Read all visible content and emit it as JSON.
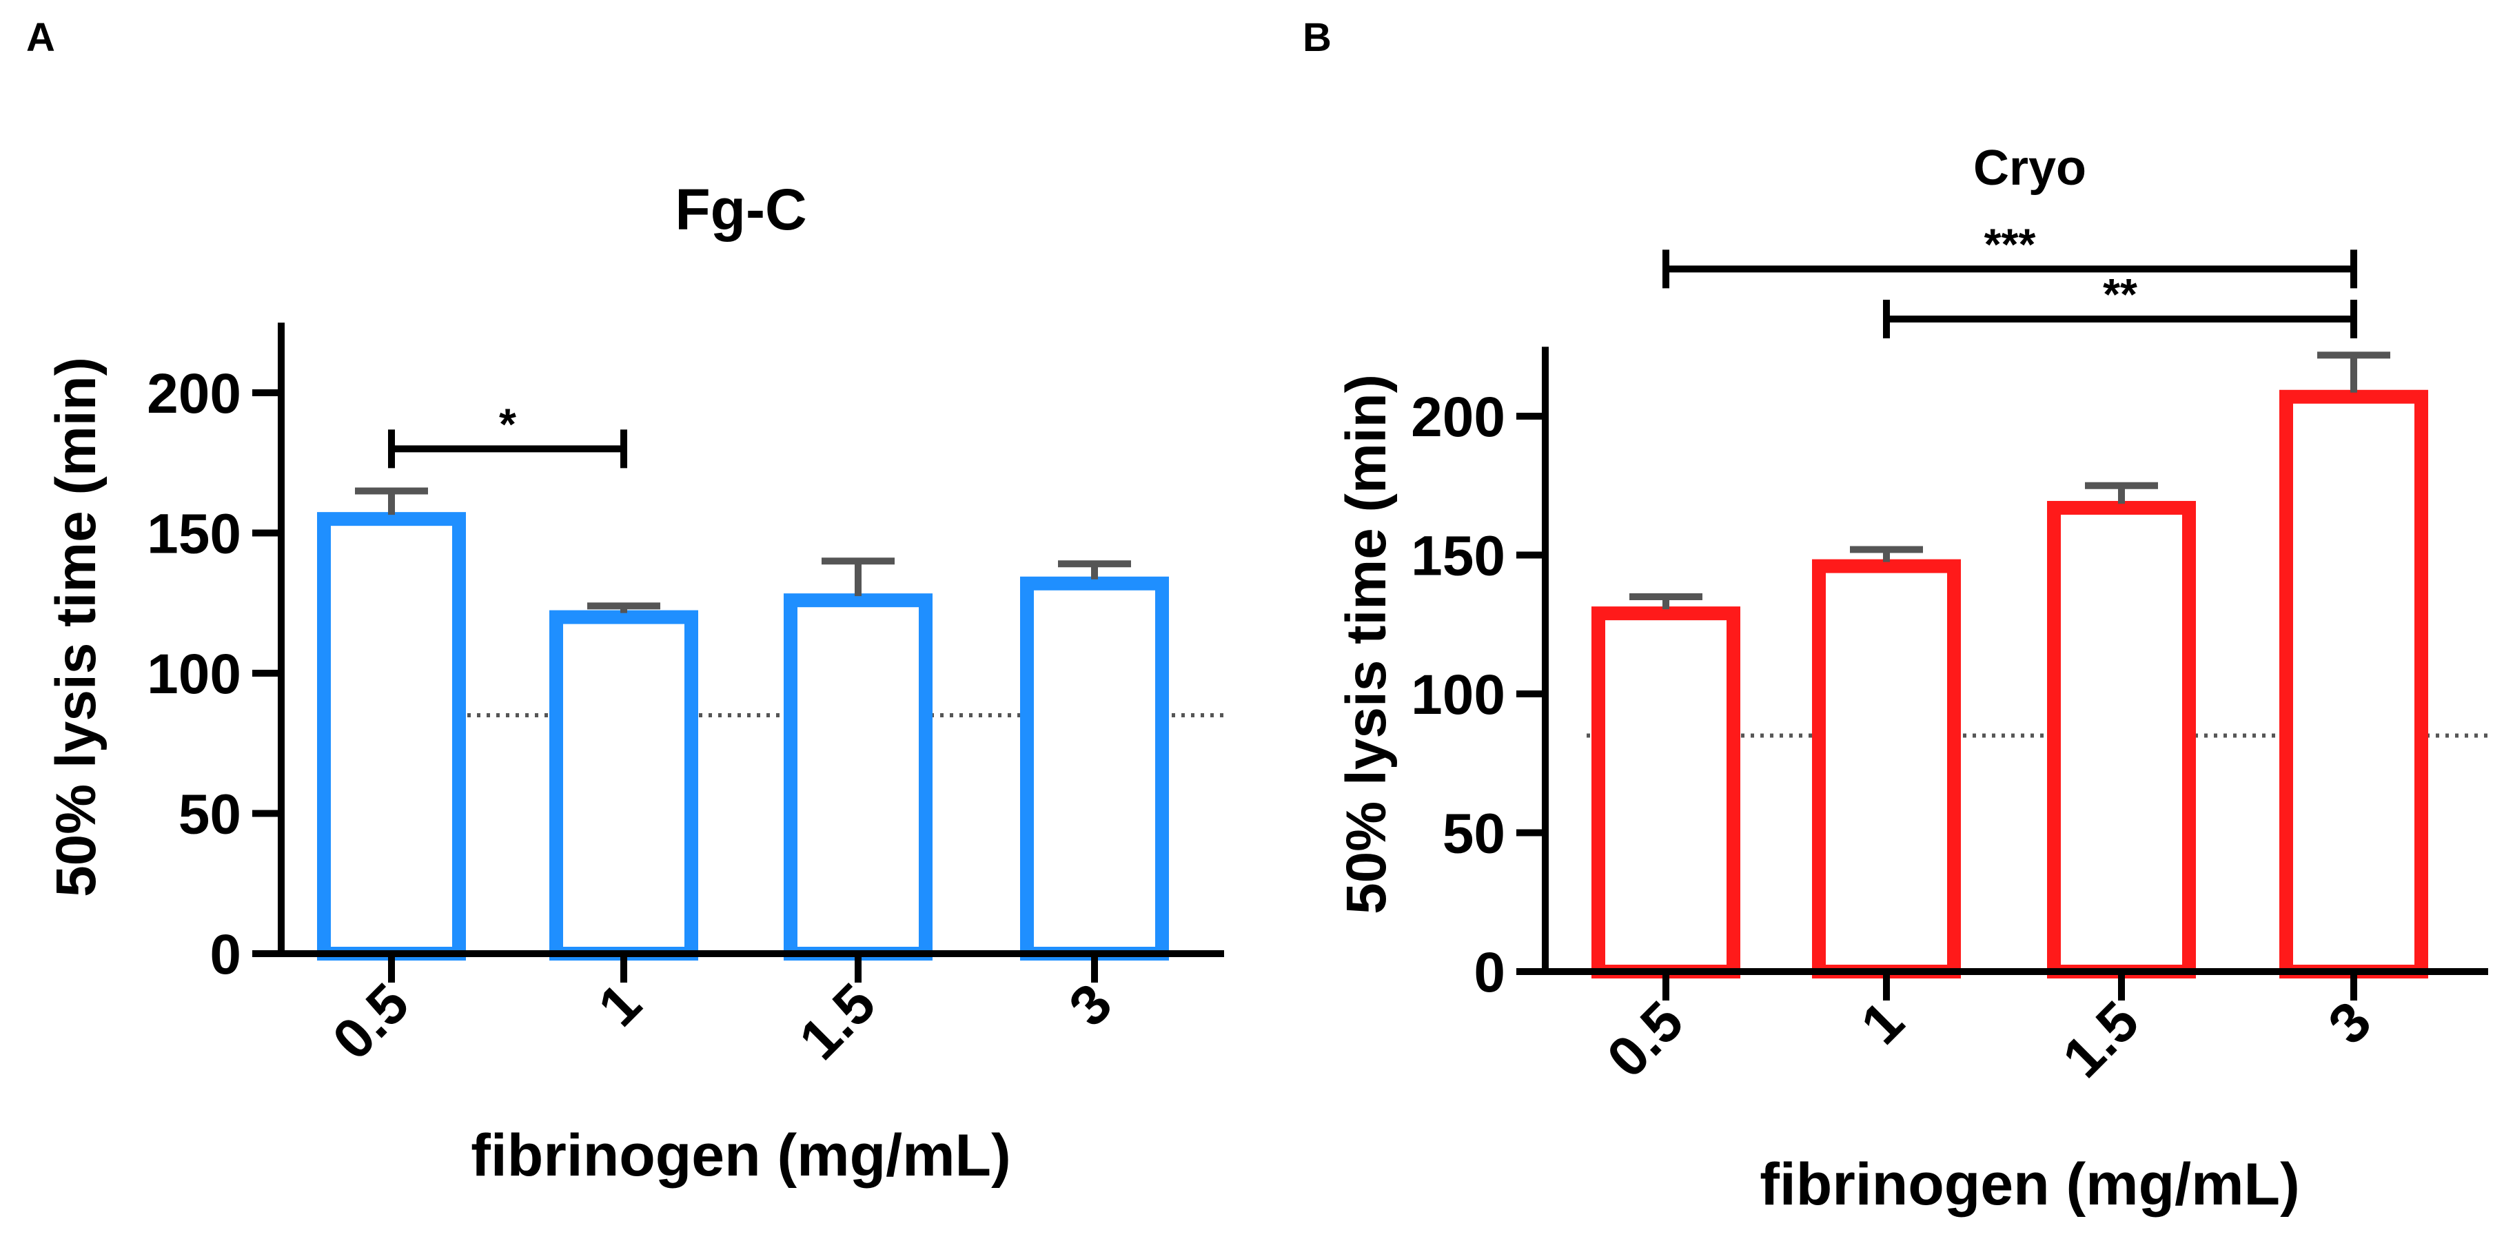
{
  "chart_data": [
    {
      "panel_label": "A",
      "type": "bar",
      "title": "Fg-C",
      "xlabel": "fibrinogen (mg/mL)",
      "ylabel": "50% lysis time (min)",
      "categories": [
        "0.5",
        "1",
        "1.5",
        "3"
      ],
      "values": [
        155,
        120,
        126,
        132
      ],
      "errors": [
        10,
        4,
        14,
        7
      ],
      "ylim": [
        0,
        225
      ],
      "yticks": [
        "0",
        "50",
        "100",
        "150",
        "200"
      ],
      "reference_line": 85,
      "color": "#1f8fff",
      "significance": [
        {
          "from": 0,
          "to": 1,
          "label": "*",
          "level": 180
        }
      ]
    },
    {
      "panel_label": "B",
      "type": "bar",
      "title": "Cryo",
      "xlabel": "fibrinogen (mg/mL)",
      "ylabel": "50% lysis time (min)",
      "categories": [
        "0.5",
        "1",
        "1.5",
        "3"
      ],
      "values": [
        129,
        146,
        167,
        207
      ],
      "errors": [
        6,
        6,
        8,
        15
      ],
      "ylim": [
        0,
        225
      ],
      "yticks": [
        "0",
        "50",
        "100",
        "150",
        "200"
      ],
      "reference_line": 85,
      "color": "#ff1a1a",
      "significance": [
        {
          "from": 0,
          "to": 3,
          "label": "***",
          "level": 253
        },
        {
          "from": 1,
          "to": 3,
          "label": "**",
          "level": 235
        }
      ]
    }
  ]
}
